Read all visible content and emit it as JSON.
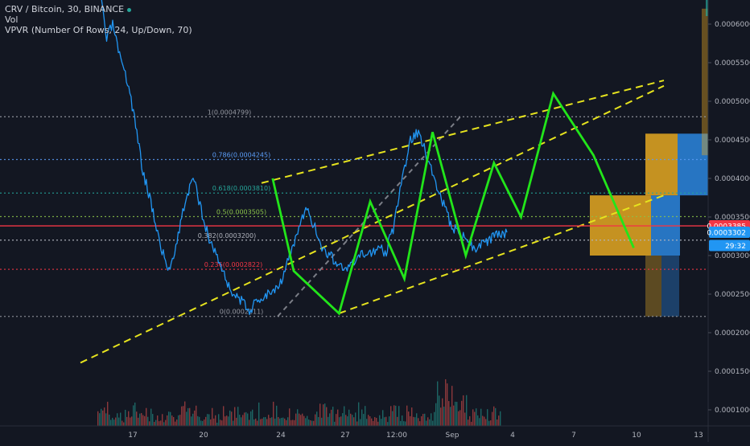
{
  "header": {
    "symbol_line": "CRV / Bitcoin, 30, BINANCE",
    "vol_line": "Vol",
    "vpvr_line": "VPVR (Number Of Rows, 24, Up/Down, 70)"
  },
  "colors": {
    "background": "#131722",
    "price_line": "#2196f3",
    "pattern_line": "#22e51a",
    "channel_line": "#e6e31e",
    "current_price_line": "#f23645",
    "vpvr_up": "#2a7fd4",
    "vpvr_down": "#e5a821"
  },
  "chart_data": {
    "type": "line",
    "title": "CRV / Bitcoin, 30, BINANCE",
    "x_ticks": [
      "17",
      "20",
      "24",
      "27",
      "12:00",
      "Sep",
      "4",
      "7",
      "10",
      "13"
    ],
    "y_ticks": [
      "0.0006000",
      "0.0005500",
      "0.0005000",
      "0.0004500",
      "0.0004000",
      "0.0003500",
      "0.0003000",
      "0.0002500",
      "0.0002000",
      "0.0001500",
      "0.0001000"
    ],
    "ylim": [
      8.6e-05,
      0.00064
    ],
    "price_tags": [
      {
        "label": "0.0003385",
        "value": 0.0003385,
        "color": "#f23645"
      },
      {
        "label": "0.0003302",
        "value": 0.0003302,
        "color": "#2196f3"
      },
      {
        "label": "29:32",
        "value": 0.000313,
        "color": "#2196f3"
      }
    ],
    "fib_levels": [
      {
        "label": "1(0.0004799)",
        "value": 0.0004799,
        "color": "#9598a1"
      },
      {
        "label": "0.786(0.0004245)",
        "value": 0.0004245,
        "color": "#5b9cf6"
      },
      {
        "label": "0.618(0.0003810)",
        "value": 0.000381,
        "color": "#26a69a"
      },
      {
        "label": "0.5(0.0003505)",
        "value": 0.0003505,
        "color": "#8bc34a"
      },
      {
        "label": "0.382(0.0003200)",
        "value": 0.00032,
        "color": "#b2b5be"
      },
      {
        "label": "0.236(0.0002822)",
        "value": 0.0002822,
        "color": "#f23645"
      },
      {
        "label": "0(0.0002211)",
        "value": 0.0002211,
        "color": "#9598a1"
      }
    ],
    "price_series": {
      "name": "CRV/BTC",
      "x": [
        0.0,
        0.3,
        0.6,
        1.0,
        1.4,
        1.8,
        2.1,
        2.5,
        3.0,
        3.4,
        3.8,
        4.2,
        4.6,
        5.0,
        5.4,
        5.8,
        6.2,
        6.6,
        7.0,
        7.4,
        7.8,
        8.2,
        8.6,
        9.0,
        9.4,
        9.8,
        10.2,
        10.6,
        11.0,
        11.4,
        11.8,
        12.2,
        12.6,
        13.0,
        13.4,
        13.8,
        14.2,
        14.6,
        15.0,
        15.4,
        15.8,
        16.2,
        16.6,
        17.0,
        17.4,
        17.8,
        18.2,
        18.6,
        19.0,
        19.4,
        19.8,
        20.2
      ],
      "y": [
        0.00064,
        0.00058,
        0.0006,
        0.00055,
        0.00052,
        0.00046,
        0.00041,
        0.00037,
        0.00031,
        0.00028,
        0.00032,
        0.00037,
        0.0004,
        0.00036,
        0.00032,
        0.0003,
        0.00027,
        0.00025,
        0.00024,
        0.00023,
        0.00024,
        0.00025,
        0.000255,
        0.00027,
        0.0003,
        0.00033,
        0.00036,
        0.00034,
        0.00031,
        0.0003,
        0.00029,
        0.00028,
        0.00029,
        0.0003,
        0.000305,
        0.00031,
        0.000305,
        0.00034,
        0.0004,
        0.00045,
        0.00046,
        0.00043,
        0.0004,
        0.00037,
        0.00034,
        0.00033,
        0.00032,
        0.00031,
        0.000315,
        0.00032,
        0.00033,
        0.00033
      ]
    },
    "pattern_series": {
      "x": [
        8.55,
        9.6,
        11.85,
        13.4,
        15.1,
        16.5,
        18.15,
        19.55,
        20.9,
        22.5,
        24.5,
        26.5
      ],
      "y": [
        0.0004,
        0.00028,
        0.000225,
        0.00037,
        0.00027,
        0.00046,
        0.0003,
        0.00042,
        0.00035,
        0.00051,
        0.00043,
        0.00031
      ]
    },
    "channel_lines": [
      {
        "x": [
          -1.0,
          28.0
        ],
        "y": [
          0.000161,
          0.00052
        ]
      },
      {
        "x": [
          8.0,
          28.0
        ],
        "y": [
          0.000394,
          0.000527
        ]
      },
      {
        "x": [
          11.85,
          28.0
        ],
        "y": [
          0.000225,
          0.000378
        ]
      }
    ],
    "volume_ticks": [
      "0.0002000",
      "0.0001500",
      "0.0001000"
    ]
  }
}
